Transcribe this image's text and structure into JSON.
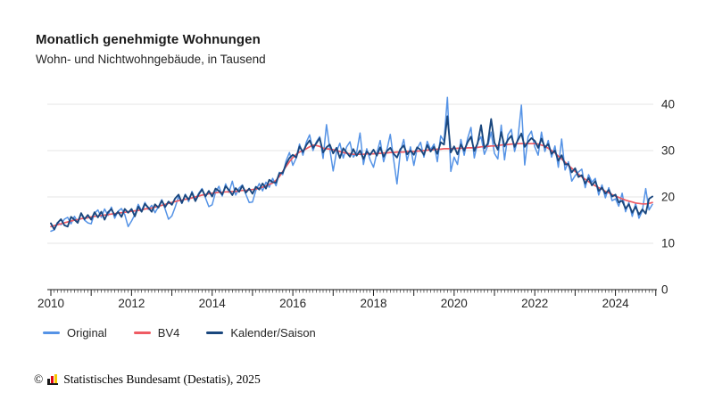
{
  "header": {
    "title": "Monatlich genehmigte Wohnungen",
    "subtitle": "Wohn- und Nichtwohngebäude, in Tausend"
  },
  "footer": {
    "copyright": "©",
    "text": "Statistisches Bundesamt (Destatis), 2025"
  },
  "colors": {
    "grid": "#e5e5e5",
    "axis": "#1a1a1a",
    "tick_label": "#262626"
  },
  "chart_data": {
    "type": "line",
    "title": "Monatlich genehmigte Wohnungen",
    "subtitle": "Wohn- und Nichtwohngebäude, in Tausend",
    "unit": "Tausend",
    "x_start": "2010-01",
    "x_end": "2024-12",
    "x_frequency": "monthly",
    "x_tick_labels": [
      "2010",
      "2012",
      "2014",
      "2016",
      "2018",
      "2020",
      "2022",
      "2024"
    ],
    "y_ticks": [
      0,
      10,
      20,
      30,
      40
    ],
    "ylim": [
      0,
      42
    ],
    "grid": "horizontal",
    "legend_position": "bottom-left",
    "series": [
      {
        "name": "Original",
        "color": "#5593e6",
        "values": [
          12.6,
          12.9,
          14.5,
          14.0,
          15.2,
          15.6,
          14.2,
          15.8,
          14.6,
          16.4,
          15.0,
          14.4,
          14.2,
          16.5,
          17.2,
          15.6,
          17.4,
          16.0,
          17.8,
          15.4,
          16.9,
          17.5,
          16.2,
          13.6,
          14.8,
          16.2,
          18.4,
          17.0,
          18.8,
          17.3,
          18.2,
          16.6,
          17.9,
          19.4,
          17.4,
          15.2,
          15.9,
          17.8,
          20.1,
          18.6,
          20.6,
          19.0,
          21.2,
          19.4,
          20.8,
          21.8,
          19.8,
          17.9,
          18.3,
          21.0,
          22.3,
          20.2,
          22.8,
          21.0,
          23.4,
          20.4,
          21.9,
          22.6,
          20.6,
          18.8,
          18.9,
          21.4,
          22.9,
          21.3,
          23.2,
          22.1,
          24.0,
          22.4,
          25.3,
          24.8,
          27.8,
          29.6,
          26.8,
          28.4,
          31.4,
          29.0,
          31.8,
          33.4,
          30.0,
          31.9,
          33.0,
          28.3,
          35.6,
          30.4,
          25.6,
          29.8,
          31.6,
          28.4,
          30.8,
          31.9,
          28.6,
          29.6,
          33.8,
          27.0,
          30.4,
          28.0,
          26.4,
          29.4,
          32.2,
          27.6,
          30.2,
          33.5,
          28.0,
          22.8,
          29.8,
          32.4,
          27.8,
          30.8,
          26.8,
          30.4,
          31.8,
          28.6,
          32.0,
          30.2,
          31.4,
          27.6,
          33.2,
          32.0,
          41.5,
          25.5,
          28.6,
          27.0,
          32.4,
          29.0,
          32.6,
          35.0,
          28.4,
          31.8,
          33.0,
          29.2,
          31.0,
          34.0,
          29.4,
          28.2,
          35.5,
          28.0,
          33.4,
          34.6,
          29.8,
          32.8,
          39.8,
          26.9,
          33.0,
          34.2,
          30.8,
          29.0,
          34.0,
          29.8,
          32.2,
          28.6,
          31.0,
          26.4,
          32.5,
          25.8,
          27.6,
          23.4,
          24.6,
          25.4,
          26.0,
          22.0,
          24.8,
          23.2,
          24.0,
          20.4,
          22.6,
          19.8,
          22.0,
          19.2,
          19.6,
          18.0,
          20.8,
          16.8,
          18.8,
          15.8,
          18.6,
          15.4,
          17.0,
          21.8,
          17.2,
          18.4
        ]
      },
      {
        "name": "BV4",
        "color": "#ef5b63",
        "values": [
          13.6,
          13.8,
          14.0,
          14.2,
          14.4,
          14.6,
          14.8,
          15.0,
          15.1,
          15.3,
          15.4,
          15.5,
          15.7,
          15.8,
          15.9,
          16.0,
          16.1,
          16.2,
          16.3,
          16.4,
          16.5,
          16.6,
          16.7,
          16.8,
          16.9,
          17.0,
          17.1,
          17.2,
          17.4,
          17.5,
          17.6,
          17.8,
          18.0,
          18.2,
          18.4,
          18.6,
          18.8,
          19.0,
          19.2,
          19.3,
          19.5,
          19.6,
          19.8,
          20.0,
          20.2,
          20.4,
          20.5,
          20.7,
          20.8,
          20.9,
          21.0,
          21.0,
          21.1,
          21.1,
          21.2,
          21.2,
          21.3,
          21.4,
          21.4,
          21.5,
          21.6,
          21.7,
          21.9,
          22.1,
          22.4,
          22.7,
          23.0,
          23.6,
          24.4,
          25.5,
          26.6,
          27.6,
          28.5,
          29.2,
          29.7,
          30.0,
          30.4,
          30.8,
          31.2,
          31.1,
          30.9,
          30.5,
          30.4,
          30.3,
          30.2,
          30.0,
          29.8,
          29.6,
          29.4,
          29.3,
          29.2,
          29.2,
          29.2,
          29.2,
          29.3,
          29.3,
          29.3,
          29.4,
          29.4,
          29.5,
          29.5,
          29.6,
          29.6,
          29.7,
          29.7,
          29.7,
          29.8,
          29.8,
          29.8,
          29.9,
          29.9,
          30.0,
          30.1,
          30.2,
          30.2,
          30.3,
          30.3,
          30.4,
          30.4,
          30.4,
          30.4,
          30.5,
          30.5,
          30.5,
          30.6,
          30.6,
          30.6,
          30.7,
          30.8,
          30.9,
          30.9,
          31.0,
          31.0,
          31.1,
          31.2,
          31.3,
          31.3,
          31.4,
          31.4,
          31.5,
          31.5,
          31.5,
          31.5,
          31.5,
          31.5,
          31.4,
          31.2,
          31.0,
          30.5,
          30.0,
          29.5,
          28.8,
          28.2,
          27.5,
          26.8,
          26.2,
          25.5,
          24.9,
          24.3,
          23.8,
          23.3,
          22.8,
          22.4,
          22.0,
          21.7,
          21.2,
          20.9,
          20.5,
          20.2,
          19.9,
          19.6,
          19.3,
          19.1,
          18.9,
          18.7,
          18.6,
          18.5,
          18.5,
          18.6,
          18.8
        ]
      },
      {
        "name": "Kalender/Saison",
        "color": "#1a477e",
        "values": [
          14.3,
          13.0,
          14.4,
          15.2,
          13.9,
          13.6,
          15.7,
          15.1,
          14.4,
          16.5,
          15.2,
          16.1,
          15.1,
          16.7,
          15.6,
          16.8,
          15.1,
          16.7,
          17.4,
          16.0,
          16.8,
          15.7,
          17.4,
          16.6,
          17.4,
          15.8,
          17.9,
          16.8,
          18.5,
          17.7,
          16.8,
          18.4,
          17.7,
          19.2,
          17.8,
          19.0,
          18.3,
          19.7,
          20.5,
          18.7,
          20.4,
          19.4,
          20.9,
          19.1,
          20.6,
          21.6,
          20.1,
          21.3,
          20.1,
          21.8,
          21.3,
          20.5,
          22.3,
          21.5,
          20.4,
          21.9,
          21.1,
          22.4,
          20.9,
          21.8,
          20.7,
          22.2,
          21.6,
          22.9,
          21.8,
          23.7,
          23.2,
          23.1,
          25.1,
          25.2,
          27.1,
          28.4,
          29.1,
          28.5,
          30.9,
          29.7,
          31.2,
          32.2,
          30.6,
          31.6,
          32.7,
          29.6,
          30.7,
          31.3,
          29.4,
          30.6,
          28.4,
          30.5,
          29.6,
          28.7,
          30.3,
          28.9,
          30.0,
          28.2,
          29.8,
          29.1,
          30.2,
          28.9,
          30.7,
          28.7,
          29.9,
          30.6,
          29.3,
          28.5,
          30.3,
          31.1,
          29.2,
          30.0,
          29.1,
          30.7,
          30.2,
          29.1,
          31.2,
          29.8,
          30.8,
          29.3,
          31.8,
          31.3,
          37.4,
          29.6,
          30.9,
          29.2,
          31.3,
          30.0,
          31.8,
          33.0,
          29.9,
          31.6,
          35.5,
          30.5,
          31.5,
          36.8,
          31.7,
          30.2,
          34.0,
          30.9,
          32.3,
          33.2,
          30.8,
          32.3,
          33.7,
          30.8,
          31.9,
          32.7,
          32.1,
          30.6,
          32.6,
          30.7,
          31.4,
          29.3,
          30.0,
          27.8,
          29.0,
          27.0,
          27.1,
          25.3,
          26.2,
          24.3,
          24.7,
          22.9,
          24.1,
          22.5,
          23.4,
          21.3,
          22.0,
          20.7,
          21.5,
          20.1,
          20.5,
          18.8,
          19.2,
          17.5,
          18.4,
          16.6,
          17.9,
          16.2,
          17.3,
          16.4,
          19.6,
          20.1
        ]
      }
    ]
  }
}
